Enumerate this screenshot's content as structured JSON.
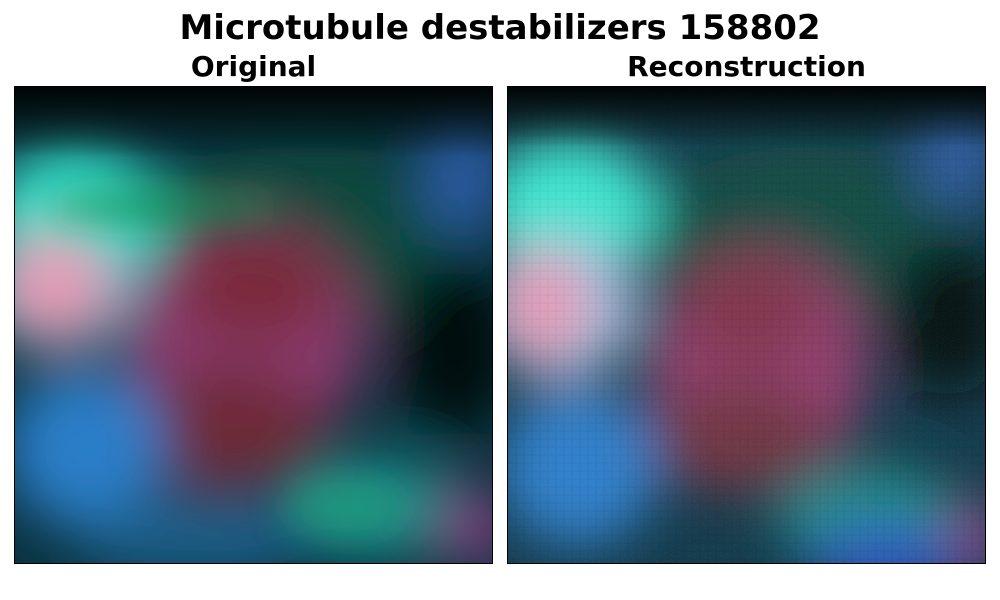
{
  "figure": {
    "title": "Microtubule destabilizers 158802"
  },
  "panels": [
    {
      "title": "Original"
    },
    {
      "title": "Reconstruction"
    }
  ],
  "palette": {
    "background": "#0a2a3a",
    "cyan": "#3de8d8",
    "pink": "#e89ab0",
    "magenta_red": "#b03a60",
    "dark_red": "#7a2a3a",
    "teal_green": "#1a8a6a",
    "blue": "#2a70c0",
    "dark": "#020806"
  }
}
